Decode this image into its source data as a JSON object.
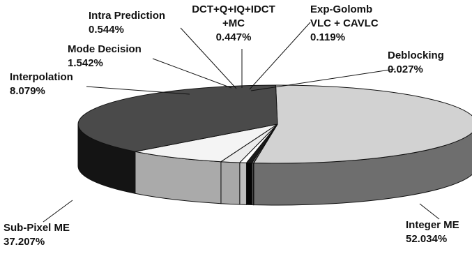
{
  "chart_data": {
    "type": "pie",
    "title": "",
    "slices": [
      {
        "name": "Integer ME",
        "label_lines": [
          "Integer ME"
        ],
        "value": 52.034,
        "value_label": "52.034%",
        "color": "#d2d2d2",
        "side_color": "#6e6e6e"
      },
      {
        "name": "Deblocking",
        "label_lines": [
          "Deblocking"
        ],
        "value": 0.027,
        "value_label": "0.027%",
        "color": "#ffffff",
        "side_color": "#bdbdbd"
      },
      {
        "name": "Exp-Golomb VLC + CAVLC",
        "label_lines": [
          "Exp-Golomb",
          "VLC + CAVLC"
        ],
        "value": 0.119,
        "value_label": "0.119%",
        "color": "#9a9a9a",
        "side_color": "#5a5a5a"
      },
      {
        "name": "DCT+Q+IQ+IDCT +MC",
        "label_lines": [
          "DCT+Q+IQ+IDCT",
          "+MC"
        ],
        "value": 0.447,
        "value_label": "0.447%",
        "color": "#1a1a1a",
        "side_color": "#050505"
      },
      {
        "name": "Intra Prediction",
        "label_lines": [
          "Intra Prediction"
        ],
        "value": 0.544,
        "value_label": "0.544%",
        "color": "#ffffff",
        "side_color": "#bdbdbd"
      },
      {
        "name": "Mode Decision",
        "label_lines": [
          "Mode Decision"
        ],
        "value": 1.542,
        "value_label": "1.542%",
        "color": "#ececec",
        "side_color": "#a8a8a8"
      },
      {
        "name": "Interpolation",
        "label_lines": [
          "Interpolation"
        ],
        "value": 8.079,
        "value_label": "8.079%",
        "color": "#f4f4f4",
        "side_color": "#aaaaaa"
      },
      {
        "name": "Sub-Pixel ME",
        "label_lines": [
          "Sub-Pixel ME"
        ],
        "value": 37.207,
        "value_label": "37.207%",
        "color": "#4a4a4a",
        "side_color": "#141414"
      }
    ]
  }
}
